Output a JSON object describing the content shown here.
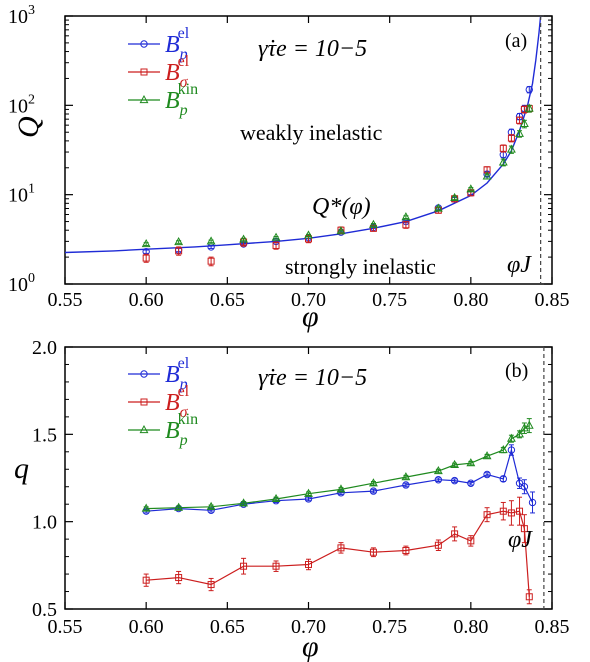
{
  "colors": {
    "blue": "#1f2bd6",
    "red": "#cc1e1e",
    "green": "#1f8a1f",
    "dashed": "#444444"
  },
  "chart_data": [
    {
      "type": "scatter",
      "panel_label": "(a)",
      "xlabel": "φ",
      "ylabel": "Q",
      "ylog": true,
      "xlim": [
        0.55,
        0.85
      ],
      "ylim": [
        1,
        1000
      ],
      "x_ticks": [
        "0.55",
        "0.60",
        "0.65",
        "0.70",
        "0.75",
        "0.80",
        "0.85"
      ],
      "y_ticks": [
        {
          "base": "10",
          "exp": "0"
        },
        {
          "base": "10",
          "exp": "1"
        },
        {
          "base": "10",
          "exp": "2"
        },
        {
          "base": "10",
          "exp": "3"
        }
      ],
      "annotations": {
        "rate": "γ̇τe = 10−5",
        "weak": "weakly inelastic",
        "strong": "strongly inelastic",
        "curve": "Q*(φ)",
        "phiJ": "φJ"
      },
      "phi_J": 0.843,
      "curve": {
        "label": "Q*(φ)",
        "x": [
          0.55,
          0.58,
          0.6,
          0.63,
          0.65,
          0.68,
          0.7,
          0.72,
          0.74,
          0.76,
          0.78,
          0.8,
          0.81,
          0.82,
          0.825,
          0.83,
          0.835,
          0.838,
          0.84,
          0.842,
          0.843
        ],
        "y": [
          2.25,
          2.35,
          2.45,
          2.6,
          2.75,
          3.0,
          3.25,
          3.65,
          4.2,
          5.0,
          6.6,
          9.8,
          13.5,
          22,
          31,
          52,
          100,
          175,
          320,
          650,
          1000
        ]
      },
      "series": [
        {
          "name": "Bp el",
          "marker": "circle",
          "color": "#1f2bd6",
          "x": [
            0.6,
            0.62,
            0.64,
            0.66,
            0.68,
            0.7,
            0.72,
            0.74,
            0.76,
            0.78,
            0.79,
            0.8,
            0.81,
            0.82,
            0.825,
            0.83,
            0.833,
            0.836
          ],
          "y": [
            2.3,
            2.4,
            2.6,
            2.8,
            3.0,
            3.3,
            3.8,
            4.3,
            5.0,
            7.1,
            9.0,
            10.5,
            17,
            28,
            50,
            75,
            92,
            150
          ],
          "err": [
            0.1,
            0.1,
            0.1,
            0.1,
            0.1,
            0.1,
            0.1,
            0.1,
            0.15,
            0.2,
            0.3,
            0.5,
            1,
            2,
            4,
            6,
            8,
            12
          ]
        },
        {
          "name": "Bσ el",
          "marker": "square",
          "color": "#cc1e1e",
          "x": [
            0.6,
            0.62,
            0.64,
            0.66,
            0.68,
            0.7,
            0.72,
            0.74,
            0.76,
            0.78,
            0.79,
            0.8,
            0.81,
            0.82,
            0.825,
            0.83,
            0.833,
            0.836
          ],
          "y": [
            1.95,
            2.35,
            1.8,
            2.95,
            2.7,
            3.2,
            4.0,
            4.2,
            4.6,
            6.7,
            9.0,
            10.5,
            19,
            33,
            43,
            68,
            90,
            92
          ],
          "err": [
            0.2,
            0.25,
            0.2,
            0.3,
            0.25,
            0.3,
            0.35,
            0.3,
            0.4,
            0.5,
            0.7,
            0.8,
            1.5,
            3,
            4,
            6,
            8,
            8
          ]
        },
        {
          "name": "Bp kin",
          "marker": "triangle",
          "color": "#1f8a1f",
          "x": [
            0.6,
            0.62,
            0.64,
            0.66,
            0.68,
            0.7,
            0.72,
            0.74,
            0.76,
            0.78,
            0.79,
            0.8,
            0.81,
            0.82,
            0.825,
            0.83,
            0.833,
            0.836
          ],
          "y": [
            2.8,
            2.95,
            3.0,
            3.15,
            3.3,
            3.5,
            3.9,
            4.6,
            5.6,
            7.0,
            9.2,
            11.5,
            16,
            23,
            32,
            48,
            62,
            92
          ],
          "err": [
            0.1,
            0.1,
            0.1,
            0.1,
            0.1,
            0.1,
            0.1,
            0.15,
            0.2,
            0.3,
            0.4,
            0.5,
            1,
            2,
            3,
            4,
            6,
            8
          ]
        }
      ],
      "legend": [
        {
          "base": "B",
          "sub": "p",
          "sup": "el"
        },
        {
          "base": "B",
          "sub": "σ",
          "sup": "el"
        },
        {
          "base": "B",
          "sub": "p",
          "sup": "kin"
        }
      ]
    },
    {
      "type": "line",
      "panel_label": "(b)",
      "xlabel": "φ",
      "ylabel": "q",
      "xlim": [
        0.55,
        0.85
      ],
      "ylim": [
        0.5,
        2.0
      ],
      "x_ticks": [
        "0.55",
        "0.60",
        "0.65",
        "0.70",
        "0.75",
        "0.80",
        "0.85"
      ],
      "y_ticks": [
        "0.5",
        "1.0",
        "1.5",
        "2.0"
      ],
      "annotations": {
        "rate": "γ̇τe = 10−5",
        "phiJ": "φJ"
      },
      "phi_J": 0.845,
      "series": [
        {
          "name": "Bp el",
          "marker": "circle",
          "color": "#1f2bd6",
          "x": [
            0.6,
            0.62,
            0.64,
            0.66,
            0.68,
            0.7,
            0.72,
            0.74,
            0.76,
            0.78,
            0.79,
            0.8,
            0.81,
            0.82,
            0.825,
            0.83,
            0.833,
            0.838
          ],
          "y": [
            1.06,
            1.075,
            1.065,
            1.1,
            1.12,
            1.13,
            1.165,
            1.175,
            1.21,
            1.24,
            1.235,
            1.22,
            1.27,
            1.245,
            1.41,
            1.22,
            1.2,
            1.11
          ],
          "err": [
            0.01,
            0.01,
            0.01,
            0.01,
            0.01,
            0.01,
            0.01,
            0.01,
            0.01,
            0.01,
            0.01,
            0.01,
            0.01,
            0.015,
            0.03,
            0.03,
            0.04,
            0.06
          ]
        },
        {
          "name": "Bσ el",
          "marker": "square",
          "color": "#cc1e1e",
          "x": [
            0.6,
            0.62,
            0.64,
            0.66,
            0.68,
            0.7,
            0.72,
            0.74,
            0.76,
            0.78,
            0.79,
            0.8,
            0.81,
            0.82,
            0.825,
            0.83,
            0.833,
            0.836
          ],
          "y": [
            0.665,
            0.68,
            0.64,
            0.745,
            0.745,
            0.755,
            0.85,
            0.825,
            0.835,
            0.865,
            0.93,
            0.89,
            1.04,
            1.06,
            1.05,
            1.06,
            0.96,
            0.57
          ],
          "err": [
            0.035,
            0.035,
            0.035,
            0.045,
            0.03,
            0.03,
            0.03,
            0.025,
            0.025,
            0.03,
            0.04,
            0.03,
            0.04,
            0.05,
            0.07,
            0.08,
            0.08,
            0.04
          ]
        },
        {
          "name": "Bp kin",
          "marker": "triangle",
          "color": "#1f8a1f",
          "x": [
            0.6,
            0.62,
            0.64,
            0.66,
            0.68,
            0.7,
            0.72,
            0.74,
            0.76,
            0.78,
            0.79,
            0.8,
            0.81,
            0.82,
            0.825,
            0.83,
            0.833,
            0.836
          ],
          "y": [
            1.075,
            1.08,
            1.085,
            1.105,
            1.13,
            1.16,
            1.185,
            1.22,
            1.255,
            1.29,
            1.325,
            1.335,
            1.375,
            1.41,
            1.475,
            1.5,
            1.535,
            1.55
          ],
          "err": [
            0.01,
            0.01,
            0.01,
            0.01,
            0.01,
            0.01,
            0.01,
            0.01,
            0.01,
            0.01,
            0.01,
            0.01,
            0.01,
            0.015,
            0.02,
            0.02,
            0.03,
            0.04
          ]
        }
      ],
      "legend": [
        {
          "base": "B",
          "sub": "p",
          "sup": "el"
        },
        {
          "base": "B",
          "sub": "σ",
          "sup": "el"
        },
        {
          "base": "B",
          "sub": "p",
          "sup": "kin"
        }
      ]
    }
  ]
}
